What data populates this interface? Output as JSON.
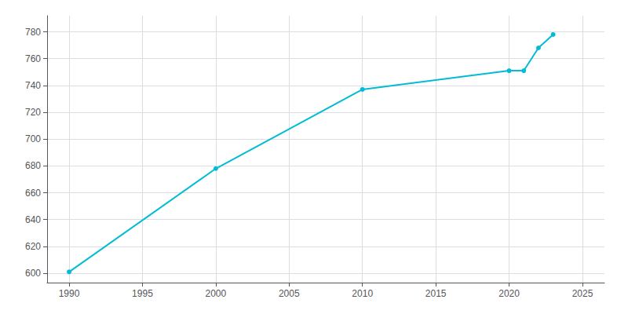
{
  "chart_data": {
    "type": "line",
    "x": [
      1990,
      2000,
      2010,
      2020,
      2021,
      2022,
      2023
    ],
    "values": [
      601,
      678,
      737,
      751,
      751,
      768,
      778
    ],
    "color": "#00BCD4",
    "marker": "o",
    "xlim": [
      1988.5,
      2026.5
    ],
    "ylim": [
      593,
      792
    ],
    "xticks": [
      1990,
      1995,
      2000,
      2005,
      2010,
      2015,
      2020,
      2025
    ],
    "yticks": [
      600,
      620,
      640,
      660,
      680,
      700,
      720,
      740,
      760,
      780
    ],
    "grid": true
  }
}
